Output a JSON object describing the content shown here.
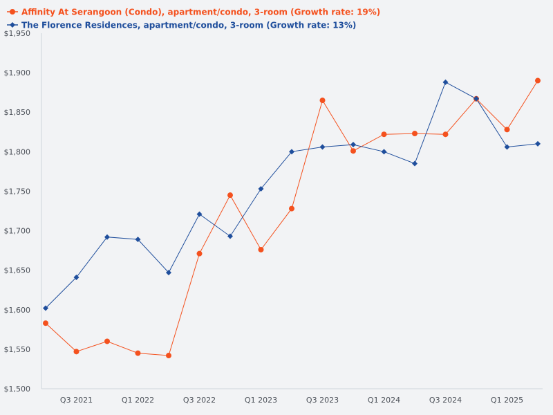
{
  "chart_data": {
    "type": "line",
    "title": "",
    "xlabel": "",
    "ylabel": "",
    "ylim": [
      1500,
      1950
    ],
    "yticks": [
      "$1,500",
      "$1,550",
      "$1,600",
      "$1,650",
      "$1,700",
      "$1,750",
      "$1,800",
      "$1,850",
      "$1,900",
      "$1,950"
    ],
    "ytick_values": [
      1500,
      1550,
      1600,
      1650,
      1700,
      1750,
      1800,
      1850,
      1900,
      1950
    ],
    "categories": [
      "Q2 2021",
      "Q3 2021",
      "Q4 2021",
      "Q1 2022",
      "Q2 2022",
      "Q3 2022",
      "Q4 2022",
      "Q1 2023",
      "Q2 2023",
      "Q3 2023",
      "Q4 2023",
      "Q1 2024",
      "Q2 2024",
      "Q3 2024",
      "Q4 2024",
      "Q1 2025",
      "Q2 2025"
    ],
    "xtick_labels": [
      "Q3 2021",
      "Q1 2022",
      "Q3 2022",
      "Q1 2023",
      "Q3 2023",
      "Q1 2024",
      "Q3 2024",
      "Q1 2025"
    ],
    "xtick_indices": [
      1,
      3,
      5,
      7,
      9,
      11,
      13,
      15
    ],
    "legend_position": "top-left",
    "series": [
      {
        "name": "Affinity At Serangoon (Condo), apartment/condo, 3-room (Growth rate: 19%)",
        "color": "#f4511e",
        "marker": "circle",
        "values": [
          1583,
          1547,
          1560,
          1545,
          1542,
          1671,
          1745,
          1676,
          1728,
          1865,
          1801,
          1822,
          1823,
          1822,
          1867,
          1828,
          1890
        ]
      },
      {
        "name": "The Florence Residences, apartment/condo, 3-room (Growth rate: 13%)",
        "color": "#1f4e9c",
        "marker": "diamond",
        "values": [
          1602,
          1641,
          1692,
          1689,
          1647,
          1721,
          1693,
          1753,
          1800,
          1806,
          1809,
          1800,
          1785,
          1888,
          1867,
          1806,
          1810
        ]
      }
    ]
  }
}
